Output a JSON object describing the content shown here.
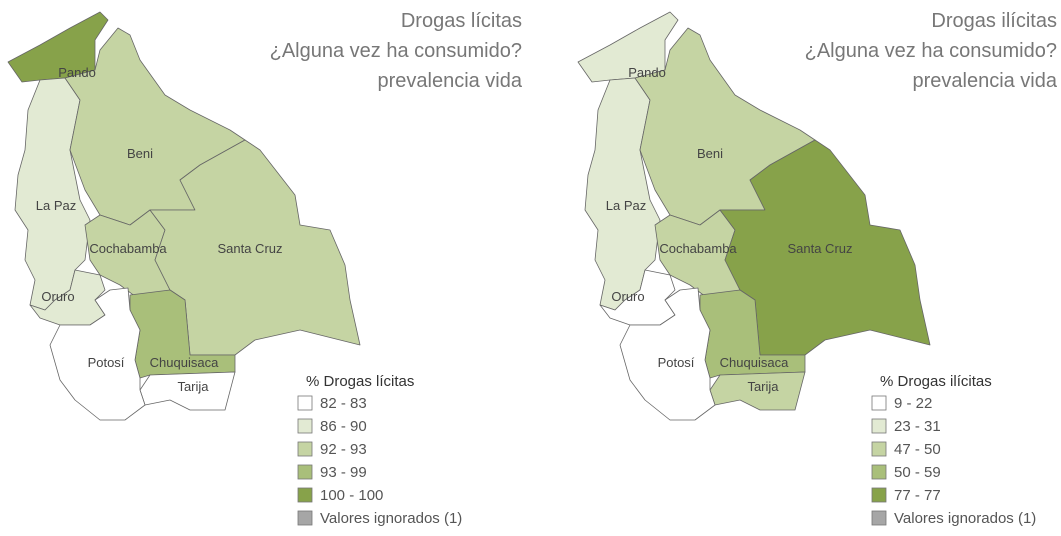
{
  "maps": [
    {
      "title": [
        "Drogas lícitas",
        "¿Alguna vez ha consumido?",
        "prevalencia vida"
      ],
      "legend": {
        "title": "% Drogas lícitas",
        "items": [
          {
            "label": "82 - 83",
            "color": "#ffffff"
          },
          {
            "label": "86 - 90",
            "color": "#e2ead3"
          },
          {
            "label": "92 - 93",
            "color": "#c5d4a3"
          },
          {
            "label": "93 - 99",
            "color": "#a9bf7a"
          },
          {
            "label": "100 - 100",
            "color": "#87a24a"
          },
          {
            "label": "Valores ignorados (1)",
            "color": "#a6a6a6"
          }
        ]
      },
      "regions": [
        {
          "name": "Pando",
          "color": "#87a24a"
        },
        {
          "name": "La Paz",
          "color": "#e2ead3"
        },
        {
          "name": "Beni",
          "color": "#c5d4a3"
        },
        {
          "name": "Cochabamba",
          "color": "#c5d4a3"
        },
        {
          "name": "Santa Cruz",
          "color": "#c5d4a3"
        },
        {
          "name": "Oruro",
          "color": "#e2ead3"
        },
        {
          "name": "Chuquisaca",
          "color": "#a9bf7a"
        },
        {
          "name": "Tarija",
          "color": "#ffffff"
        },
        {
          "name": "Potosí",
          "color": "#ffffff"
        }
      ]
    },
    {
      "title": [
        "Drogas ilícitas",
        "¿Alguna vez ha consumido?",
        "prevalencia vida"
      ],
      "legend": {
        "title": "% Drogas ilícitas",
        "items": [
          {
            "label": "9 - 22",
            "color": "#ffffff"
          },
          {
            "label": "23 - 31",
            "color": "#e2ead3"
          },
          {
            "label": "47 - 50",
            "color": "#c5d4a3"
          },
          {
            "label": "50 - 59",
            "color": "#a9bf7a"
          },
          {
            "label": "77 - 77",
            "color": "#87a24a"
          },
          {
            "label": "Valores ignorados (1)",
            "color": "#a6a6a6"
          }
        ]
      },
      "regions": [
        {
          "name": "Pando",
          "color": "#e2ead3"
        },
        {
          "name": "La Paz",
          "color": "#e2ead3"
        },
        {
          "name": "Beni",
          "color": "#c5d4a3"
        },
        {
          "name": "Cochabamba",
          "color": "#c5d4a3"
        },
        {
          "name": "Santa Cruz",
          "color": "#87a24a"
        },
        {
          "name": "Oruro",
          "color": "#ffffff"
        },
        {
          "name": "Chuquisaca",
          "color": "#a9bf7a"
        },
        {
          "name": "Tarija",
          "color": "#c5d4a3"
        },
        {
          "name": "Potosí",
          "color": "#ffffff"
        }
      ]
    }
  ]
}
